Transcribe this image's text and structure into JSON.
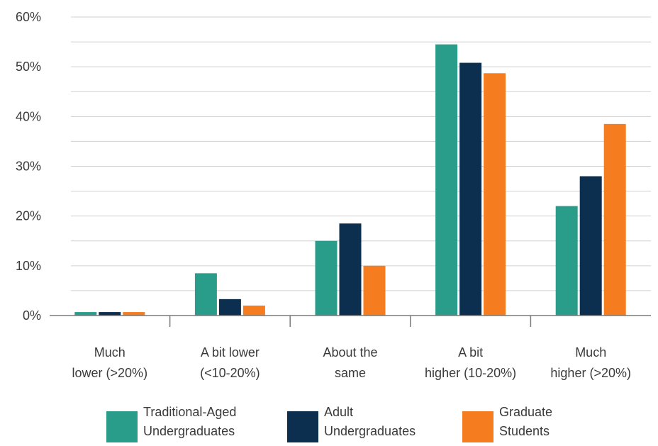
{
  "chart_data": {
    "type": "bar",
    "categories": [
      [
        "Much",
        "lower (>20%)"
      ],
      [
        "A bit lower",
        "(<10-20%)"
      ],
      [
        "About the",
        "same"
      ],
      [
        "A bit",
        "higher (10-20%)"
      ],
      [
        "Much",
        "higher (>20%)"
      ]
    ],
    "series": [
      {
        "name": [
          "Traditional-Aged",
          "Undergraduates"
        ],
        "color": "#2a9d8a",
        "values": [
          0.7,
          8.5,
          15.0,
          54.5,
          22.0
        ]
      },
      {
        "name": [
          "Adult",
          "Undergraduates"
        ],
        "color": "#0d2f4f",
        "values": [
          0.7,
          3.3,
          18.5,
          50.8,
          28.0
        ]
      },
      {
        "name": [
          "Graduate",
          "Students"
        ],
        "color": "#f57c1f",
        "values": [
          0.7,
          2.0,
          10.0,
          48.7,
          38.5
        ]
      }
    ],
    "yticks": [
      "0%",
      "10%",
      "20%",
      "30%",
      "40%",
      "50%",
      "60%"
    ],
    "ylim": [
      0,
      60
    ],
    "grid": true,
    "legend_position": "bottom"
  }
}
